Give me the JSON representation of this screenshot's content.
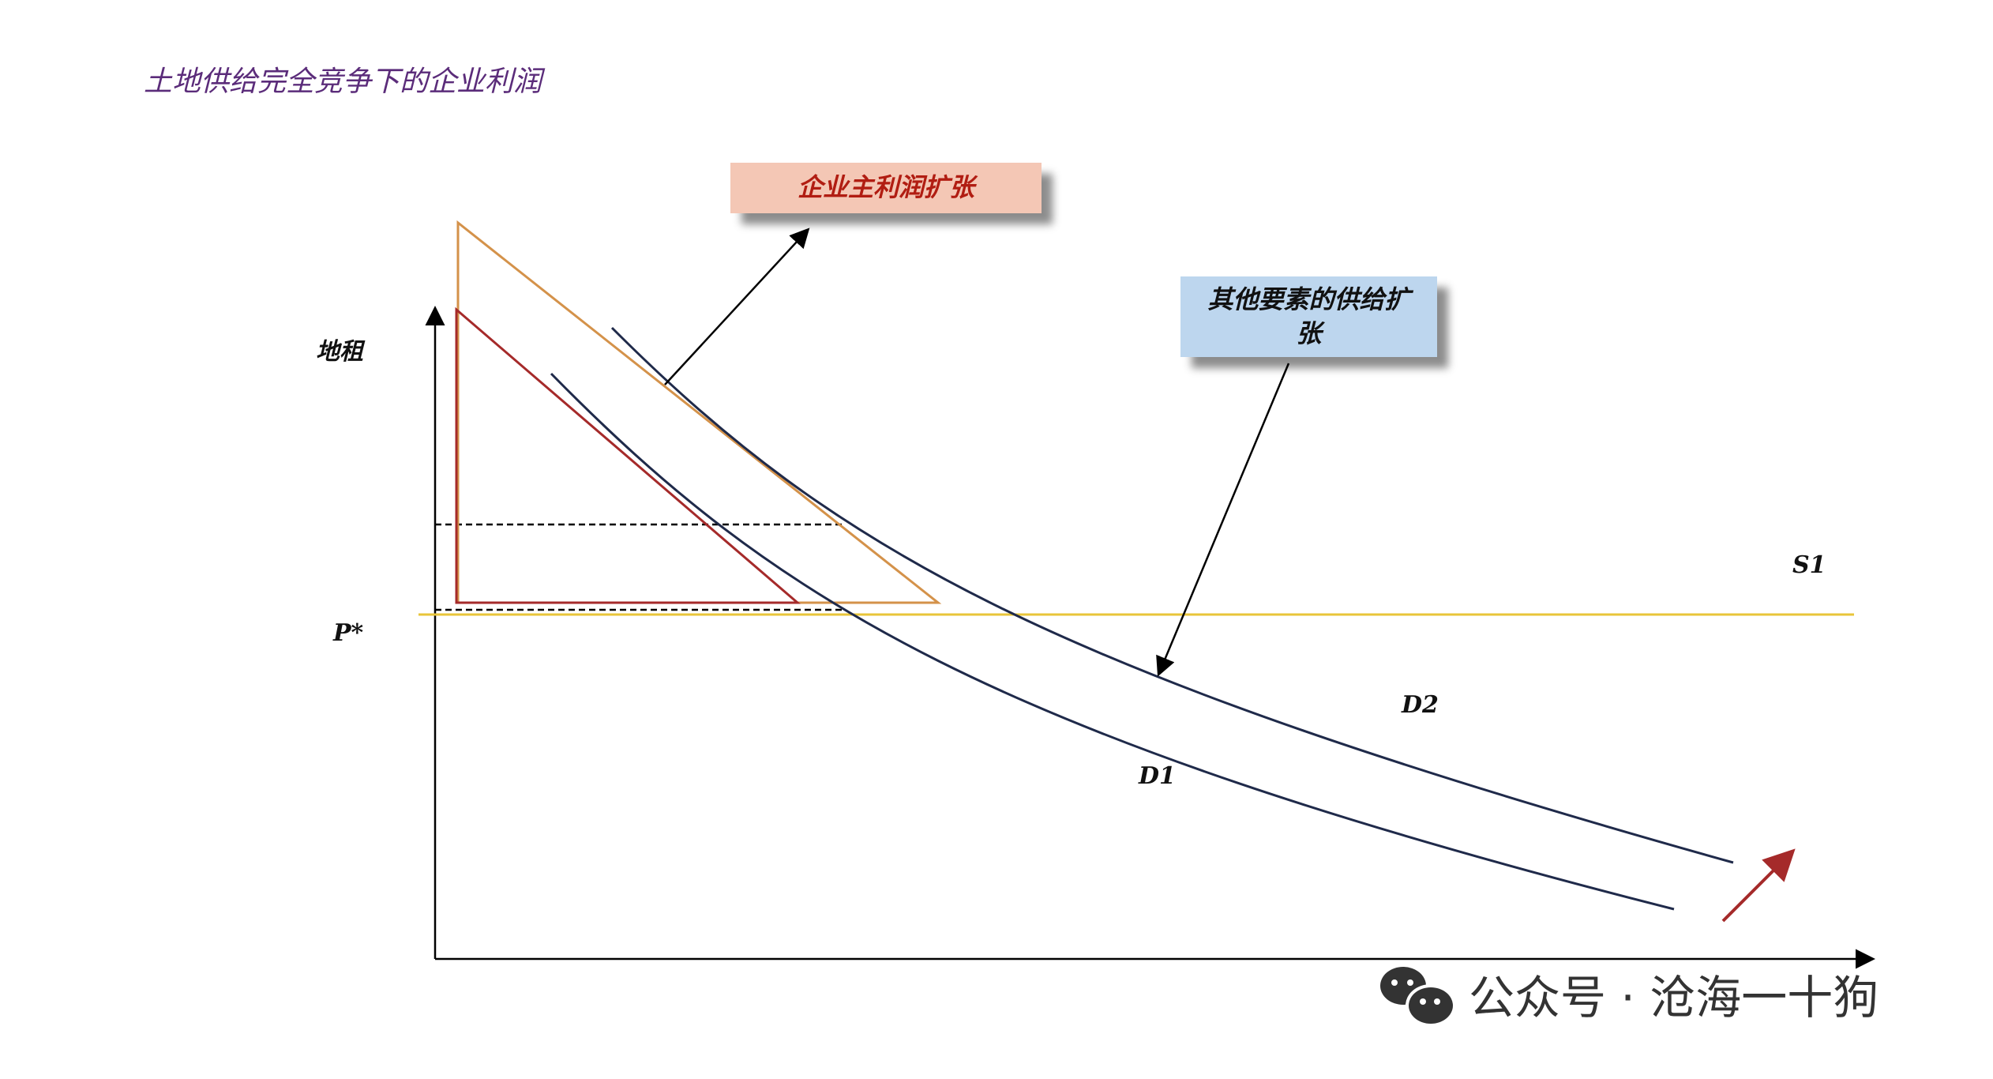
{
  "title": "土地供给完全竞争下的企业利润",
  "axes": {
    "y_label": "地租",
    "price_label": "P*"
  },
  "curves": {
    "supply": "S1",
    "demand_1": "D1",
    "demand_2": "D2"
  },
  "callouts": {
    "profit_expansion": "企业主利润扩张",
    "other_factor_supply": "其他要素的供给扩张"
  },
  "watermark": {
    "text": "公众号 · 沧海一十狗",
    "icon": "wechat-icon"
  },
  "colors": {
    "supply_line": "#e8c53a",
    "demand_curves": "#1f2a4a",
    "triangle_small": "#a52a2a",
    "triangle_large": "#d4924a",
    "arrow_red": "#a52a2a"
  }
}
